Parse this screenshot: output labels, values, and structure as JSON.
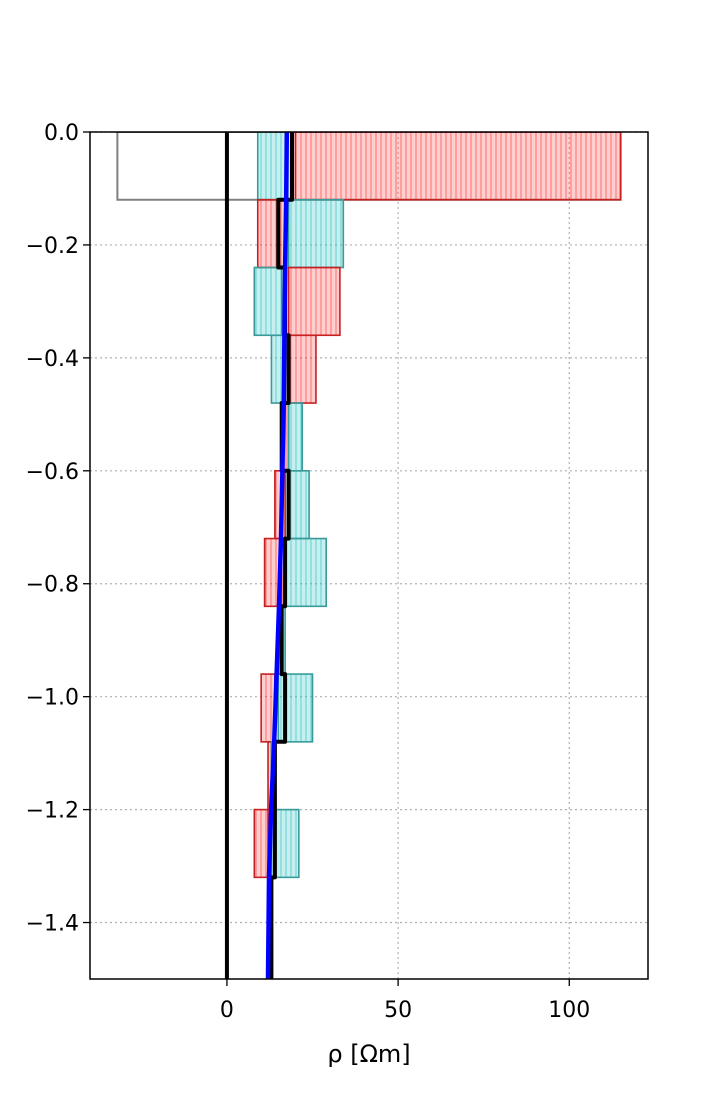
{
  "chart_data": {
    "type": "line",
    "title": "",
    "xlabel": "ρ [Ωm]",
    "ylabel": "",
    "xlim": [
      -40,
      123
    ],
    "ylim": [
      -1.5,
      0.0
    ],
    "x_ticks": [
      0,
      50,
      100
    ],
    "y_ticks": [
      0.0,
      -0.2,
      -0.4,
      -0.6,
      -0.8,
      -1.0,
      -1.2,
      -1.4
    ],
    "x_tick_labels": [
      "0",
      "50",
      "100"
    ],
    "y_tick_labels": [
      "0.0",
      "−0.2",
      "−0.4",
      "−0.6",
      "−0.8",
      "−1.0",
      "−1.2",
      "−1.4"
    ],
    "grid": true,
    "colors": {
      "red": "#ff2020",
      "cyan": "#20c0c0",
      "blue": "#0000ff",
      "black": "#000000",
      "gray": "#808080"
    },
    "reference_line": {
      "x": 0,
      "color": "#000000"
    },
    "uncertainty_boxes": [
      {
        "color": "gray",
        "top": 0.0,
        "bottom": -0.12,
        "x_min": -32,
        "x_max": 115
      },
      {
        "color": "cyan",
        "top": 0.0,
        "bottom": -0.12,
        "x_min": 9,
        "x_max": 19
      },
      {
        "color": "red",
        "top": 0.0,
        "bottom": -0.12,
        "x_min": 20,
        "x_max": 115
      },
      {
        "color": "red",
        "top": -0.12,
        "bottom": -0.24,
        "x_min": 9,
        "x_max": 17
      },
      {
        "color": "cyan",
        "top": -0.12,
        "bottom": -0.24,
        "x_min": 18,
        "x_max": 34
      },
      {
        "color": "cyan",
        "top": -0.24,
        "bottom": -0.36,
        "x_min": 8,
        "x_max": 16
      },
      {
        "color": "red",
        "top": -0.24,
        "bottom": -0.36,
        "x_min": 18,
        "x_max": 33
      },
      {
        "color": "cyan",
        "top": -0.36,
        "bottom": -0.48,
        "x_min": 13,
        "x_max": 17
      },
      {
        "color": "red",
        "top": -0.36,
        "bottom": -0.48,
        "x_min": 18,
        "x_max": 26
      },
      {
        "color": "red",
        "top": -0.48,
        "bottom": -0.6,
        "x_min": 16,
        "x_max": 18
      },
      {
        "color": "cyan",
        "top": -0.48,
        "bottom": -0.6,
        "x_min": 18,
        "x_max": 22
      },
      {
        "color": "red",
        "top": -0.6,
        "bottom": -0.72,
        "x_min": 14,
        "x_max": 17
      },
      {
        "color": "cyan",
        "top": -0.6,
        "bottom": -0.72,
        "x_min": 18,
        "x_max": 24
      },
      {
        "color": "red",
        "top": -0.72,
        "bottom": -0.84,
        "x_min": 11,
        "x_max": 16
      },
      {
        "color": "cyan",
        "top": -0.72,
        "bottom": -0.84,
        "x_min": 17,
        "x_max": 29
      },
      {
        "color": "red",
        "top": -0.84,
        "bottom": -0.96,
        "x_min": 15,
        "x_max": 16
      },
      {
        "color": "cyan",
        "top": -0.84,
        "bottom": -0.96,
        "x_min": 16,
        "x_max": 17
      },
      {
        "color": "red",
        "top": -0.96,
        "bottom": -1.08,
        "x_min": 10,
        "x_max": 14
      },
      {
        "color": "cyan",
        "top": -0.96,
        "bottom": -1.08,
        "x_min": 15,
        "x_max": 25
      },
      {
        "color": "red",
        "top": -1.08,
        "bottom": -1.2,
        "x_min": 12,
        "x_max": 13
      },
      {
        "color": "cyan",
        "top": -1.08,
        "bottom": -1.2,
        "x_min": 13,
        "x_max": 14
      },
      {
        "color": "red",
        "top": -1.2,
        "bottom": -1.32,
        "x_min": 8,
        "x_max": 12
      },
      {
        "color": "cyan",
        "top": -1.2,
        "bottom": -1.32,
        "x_min": 13,
        "x_max": 21
      }
    ],
    "series": [
      {
        "color": "#000000",
        "style": "step",
        "x": [
          19,
          19,
          15,
          15,
          17,
          17,
          18,
          18,
          16,
          16,
          18,
          18,
          17,
          17,
          16,
          16,
          17,
          17,
          14,
          14,
          14,
          14,
          13,
          13
        ],
        "y": [
          0.0,
          -0.12,
          -0.12,
          -0.24,
          -0.24,
          -0.36,
          -0.36,
          -0.48,
          -0.48,
          -0.6,
          -0.6,
          -0.72,
          -0.72,
          -0.84,
          -0.84,
          -0.96,
          -0.96,
          -1.08,
          -1.08,
          -1.2,
          -1.2,
          -1.32,
          -1.32,
          -1.5
        ]
      },
      {
        "color": "#0000ff",
        "style": "smooth",
        "x": [
          17.5,
          17.3,
          17.0,
          16.8,
          16.6,
          16.2,
          15.8,
          15.2,
          14.5,
          13.8,
          12.9,
          12.3,
          12.0
        ],
        "y": [
          0.0,
          -0.12,
          -0.24,
          -0.36,
          -0.48,
          -0.6,
          -0.72,
          -0.84,
          -0.96,
          -1.08,
          -1.2,
          -1.32,
          -1.5
        ]
      }
    ]
  }
}
